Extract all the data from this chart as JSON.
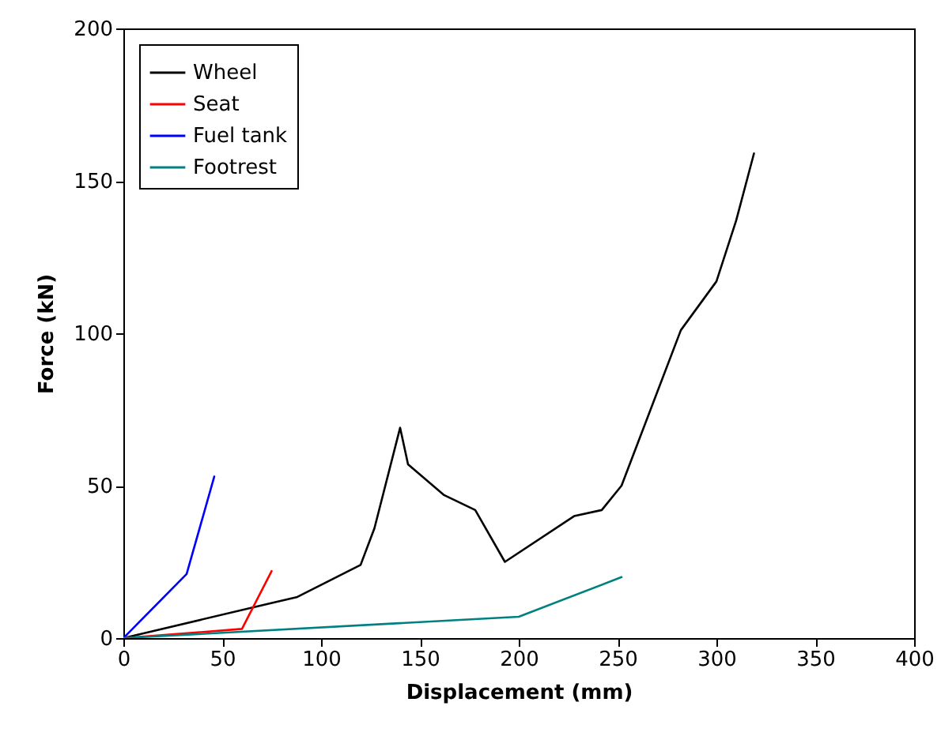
{
  "chart_data": {
    "type": "line",
    "xlabel": "Displacement (mm)",
    "ylabel": "Force (kN)",
    "xlim": [
      0,
      400
    ],
    "ylim": [
      0,
      200
    ],
    "xticks": [
      0,
      50,
      100,
      150,
      200,
      250,
      300,
      350,
      400
    ],
    "yticks": [
      0,
      50,
      100,
      150,
      200
    ],
    "grid": false,
    "legend": "top left",
    "marker": "none",
    "line_style": "solid",
    "series": [
      {
        "name": "Wheel",
        "color": "#000000",
        "x": [
          0,
          88,
          120,
          127,
          140,
          144,
          162,
          178,
          193,
          228,
          242,
          252,
          282,
          300,
          310,
          319
        ],
        "values": [
          0,
          13.5,
          24,
          36,
          69,
          57,
          47,
          42,
          25,
          40,
          42,
          50,
          101,
          117,
          137,
          159
        ]
      },
      {
        "name": "Seat",
        "color": "#ff0000",
        "x": [
          0,
          60,
          75
        ],
        "values": [
          0,
          3,
          22
        ]
      },
      {
        "name": "Fuel tank",
        "color": "#0000ff",
        "x": [
          0,
          32,
          46
        ],
        "values": [
          0,
          21,
          53
        ]
      },
      {
        "name": "Footrest",
        "color": "#008080",
        "x": [
          0,
          200,
          252
        ],
        "values": [
          0,
          7,
          20
        ]
      }
    ]
  }
}
